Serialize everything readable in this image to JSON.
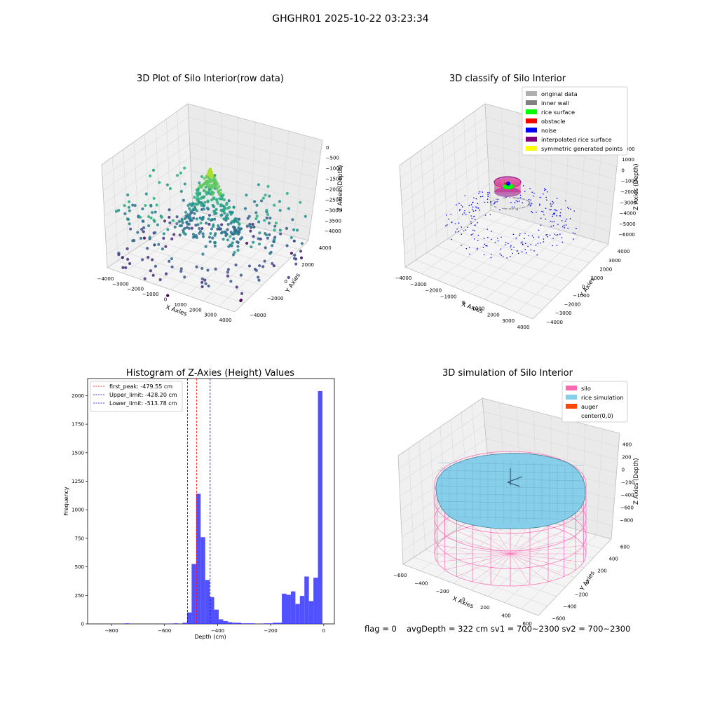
{
  "suptitle": "GHGHR01 2025-10-22 03:23:34",
  "footer": {
    "flag": "flag = 0",
    "avg": "avgDepth = 322 cm  sv1 = 700~2300  sv2 = 700~2300"
  },
  "colors": {
    "silo": "#ff69b4",
    "rice_sim": "#87ceeb",
    "auger": "#ff4500",
    "hist_bar": "#3333ff",
    "first_peak": "#ff0000",
    "limits": "#0000cc"
  },
  "chart_data": [
    {
      "type": "scatter",
      "title": "3D Plot of Silo Interior(row data)",
      "xlabel": "X Axies",
      "ylabel": "Y Axies",
      "zlabel": "Z Axies (Depth)",
      "x_ticks": [
        "−4000",
        "−3000",
        "−2000",
        "−1000",
        "0",
        "1000",
        "2000",
        "3000",
        "4000"
      ],
      "y_ticks": [
        "−4000",
        "−2000",
        "0",
        "2000",
        "4000"
      ],
      "z_ticks": [
        "−4000",
        "−3500",
        "−3000",
        "−2500",
        "−2000",
        "−1500",
        "−1000",
        "−500",
        "0"
      ],
      "xlim": [
        -4000,
        4000
      ],
      "ylim": [
        -4000,
        4000
      ],
      "zlim": [
        -4200,
        200
      ],
      "colormap": "viridis",
      "points": [
        {
          "x": 0,
          "y": 0,
          "z": -800
        },
        {
          "x": 100,
          "y": 100,
          "z": -1100
        },
        {
          "x": -200,
          "y": 300,
          "z": -1500
        },
        {
          "x": 800,
          "y": 600,
          "z": -2000
        },
        {
          "x": -600,
          "y": -1400,
          "z": -2200
        },
        {
          "x": 1600,
          "y": 900,
          "z": -2600
        },
        {
          "x": -1800,
          "y": -1600,
          "z": -3200
        },
        {
          "x": 2500,
          "y": 2800,
          "z": -3400
        },
        {
          "x": -3000,
          "y": -2200,
          "z": -3700
        },
        {
          "x": 3000,
          "y": 2500,
          "z": -3800
        },
        {
          "x": 0,
          "y": -3800,
          "z": -4000
        },
        {
          "x": -3500,
          "y": 1500,
          "z": -1800
        }
      ]
    },
    {
      "type": "scatter",
      "title": "3D classify of Silo Interior",
      "xlabel": "X Axies",
      "ylabel": "Y Axies",
      "zlabel": "Z Axies (Depth)",
      "x_ticks": [
        "−4000",
        "−3000",
        "−2000",
        "−1000",
        "0",
        "1000",
        "2000",
        "3000",
        "4000"
      ],
      "y_ticks": [
        "−4000",
        "−3000",
        "−2000",
        "−1000",
        "0",
        "1000",
        "2000",
        "3000",
        "4000"
      ],
      "z_ticks": [
        "−6000",
        "−5000",
        "−4000",
        "−3000",
        "−2000",
        "−1000",
        "0",
        "1000",
        "2000"
      ],
      "xlim": [
        -4000,
        4000
      ],
      "ylim": [
        -4000,
        4000
      ],
      "zlim": [
        -6000,
        2000
      ],
      "legend": [
        {
          "label": "original data",
          "color": "#b0b0b0"
        },
        {
          "label": "inner wall",
          "color": "#808080"
        },
        {
          "label": "rice surface",
          "color": "#00ff00"
        },
        {
          "label": "obstacle",
          "color": "#ff0000"
        },
        {
          "label": "noise",
          "color": "#0000ff"
        },
        {
          "label": "interpolated rice surface",
          "color": "#800080"
        },
        {
          "label": "symmetric generated points",
          "color": "#ffff00"
        }
      ],
      "legend_loc": "upper right"
    },
    {
      "type": "bar",
      "title": "Histogram of Z-Axies (Height) Values",
      "xlabel": "Depth (cm)",
      "ylabel": "Frequency",
      "x_ticks": [
        -800,
        -600,
        -400,
        -200,
        0
      ],
      "y_ticks": [
        0,
        250,
        500,
        750,
        1000,
        1250,
        1500,
        1750,
        2000
      ],
      "xlim": [
        -890,
        40
      ],
      "ylim": [
        0,
        2150
      ],
      "bins": [
        {
          "x0": -750,
          "x1": -733,
          "v": 5
        },
        {
          "x0": -600,
          "x1": -583,
          "v": 3
        },
        {
          "x0": -566,
          "x1": -549,
          "v": 5
        },
        {
          "x0": -532,
          "x1": -515,
          "v": 10
        },
        {
          "x0": -515,
          "x1": -498,
          "v": 100
        },
        {
          "x0": -498,
          "x1": -481,
          "v": 525
        },
        {
          "x0": -481,
          "x1": -464,
          "v": 1140
        },
        {
          "x0": -464,
          "x1": -447,
          "v": 760
        },
        {
          "x0": -447,
          "x1": -430,
          "v": 385
        },
        {
          "x0": -430,
          "x1": -413,
          "v": 235
        },
        {
          "x0": -413,
          "x1": -396,
          "v": 125
        },
        {
          "x0": -396,
          "x1": -379,
          "v": 40
        },
        {
          "x0": -379,
          "x1": -362,
          "v": 25
        },
        {
          "x0": -362,
          "x1": -345,
          "v": 15
        },
        {
          "x0": -345,
          "x1": -328,
          "v": 10
        },
        {
          "x0": -328,
          "x1": -311,
          "v": 10
        },
        {
          "x0": -311,
          "x1": -294,
          "v": 5
        },
        {
          "x0": -294,
          "x1": -277,
          "v": 5
        },
        {
          "x0": -277,
          "x1": -260,
          "v": 5
        },
        {
          "x0": -226,
          "x1": -209,
          "v": 5
        },
        {
          "x0": -209,
          "x1": -192,
          "v": 5
        },
        {
          "x0": -192,
          "x1": -175,
          "v": 10
        },
        {
          "x0": -175,
          "x1": -158,
          "v": 10
        },
        {
          "x0": -158,
          "x1": -141,
          "v": 265
        },
        {
          "x0": -141,
          "x1": -124,
          "v": 255
        },
        {
          "x0": -124,
          "x1": -107,
          "v": 285
        },
        {
          "x0": -107,
          "x1": -90,
          "v": 175
        },
        {
          "x0": -90,
          "x1": -73,
          "v": 245
        },
        {
          "x0": -73,
          "x1": -56,
          "v": 415
        },
        {
          "x0": -56,
          "x1": -39,
          "v": 200
        },
        {
          "x0": -39,
          "x1": -22,
          "v": 405
        },
        {
          "x0": -22,
          "x1": -5,
          "v": 2040
        }
      ],
      "vlines": [
        {
          "label": "first_peak: -479.55 cm",
          "x": -479.55,
          "color": "#ff0000"
        },
        {
          "label": "Upper_limit: -428.20 cm",
          "x": -428.2,
          "color": "#0000cc"
        },
        {
          "label": "Lower_limit: -513.78 cm",
          "x": -513.78,
          "color": "#0000cc"
        }
      ],
      "legend_loc": "upper left"
    },
    {
      "type": "scatter",
      "title": "3D simulation of Silo Interior",
      "xlabel": "X Axies",
      "ylabel": "Y Axies",
      "zlabel": "Z Axies (Depth)",
      "x_ticks": [
        "−600",
        "−400",
        "−200",
        "0",
        "200",
        "400",
        "600"
      ],
      "y_ticks": [
        "−600",
        "−400",
        "−200",
        "0",
        "200",
        "400",
        "600"
      ],
      "z_ticks": [
        "−800",
        "−600",
        "−400",
        "−200",
        "0",
        "200",
        "400"
      ],
      "xlim": [
        -700,
        700
      ],
      "ylim": [
        -700,
        700
      ],
      "zlim": [
        -900,
        450
      ],
      "legend": [
        {
          "label": "silo",
          "color": "#ff69b4"
        },
        {
          "label": "rice simulation",
          "color": "#87ceeb"
        },
        {
          "label": "auger",
          "color": "#ff4500"
        },
        {
          "label": "center(0,0)",
          "color": "#ffffff"
        }
      ],
      "legend_loc": "upper right"
    }
  ]
}
